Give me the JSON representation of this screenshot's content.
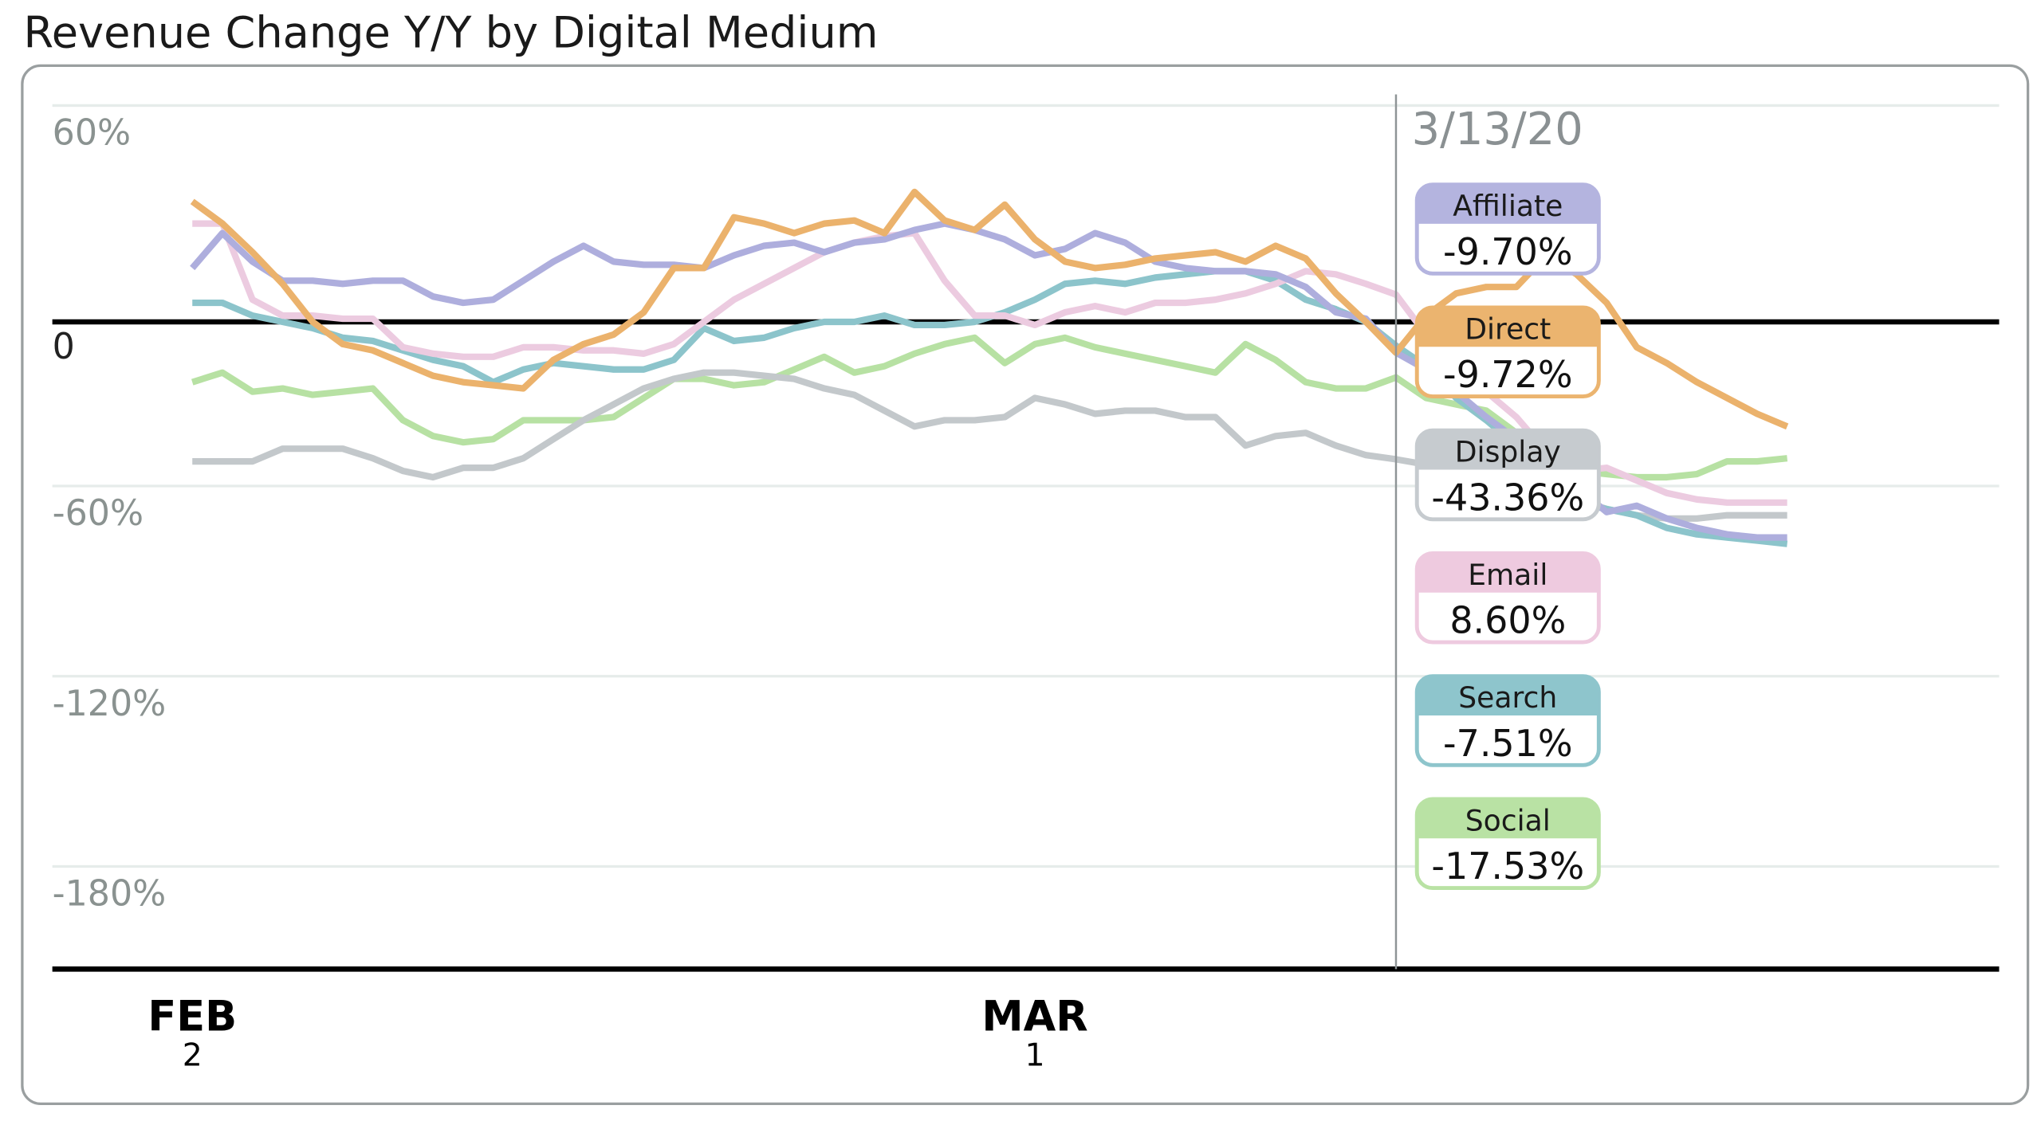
{
  "chart_data": {
    "type": "line",
    "title": "Revenue Change Y/Y by Digital Medium",
    "xlabel": "",
    "ylabel": "",
    "ylim": [
      -203,
      66
    ],
    "y_ticks": [
      {
        "value": 60,
        "label": "60%"
      },
      {
        "value": 0,
        "label": "0"
      },
      {
        "value": -60,
        "label": "-60%"
      },
      {
        "value": -120,
        "label": "-120%"
      },
      {
        "value": -180,
        "label": "-180%"
      }
    ],
    "x_ticks": [
      {
        "day_index": 0,
        "month": "FEB",
        "day": "2"
      },
      {
        "day_index": 28,
        "month": "MAR",
        "day": "1"
      }
    ],
    "x_unit": "days since Feb 2, 2020 (daily)",
    "grid": true,
    "highlight": {
      "day_index": 40,
      "label": "3/13/20"
    },
    "series": [
      {
        "name": "Affiliate",
        "color": "#aeaedd",
        "header_color": "#b4b4df",
        "callout": "-9.70%",
        "values": [
          17,
          28,
          19,
          13,
          13,
          12,
          13,
          13,
          8,
          6,
          7,
          13,
          19,
          24,
          19,
          18,
          18,
          17,
          21,
          24,
          25,
          22,
          25,
          26,
          29,
          31,
          29,
          26,
          21,
          23,
          28,
          25,
          19,
          17,
          16,
          16,
          15,
          11,
          3,
          1,
          -9.7,
          -15,
          -22,
          -30,
          -37,
          -45,
          -52,
          -60,
          -58,
          -62,
          -65,
          -67,
          -68,
          -68
        ]
      },
      {
        "name": "Direct",
        "color": "#ebb26c",
        "header_color": "#ebb46f",
        "callout": "-9.72%",
        "values": [
          38,
          31,
          22,
          12,
          0,
          -7,
          -9,
          -13,
          -17,
          -19,
          -20,
          -21,
          -12,
          -7,
          -4,
          3,
          17,
          17,
          33,
          31,
          28,
          31,
          32,
          28,
          41,
          32,
          29,
          37,
          26,
          19,
          17,
          18,
          20,
          21,
          22,
          19,
          24,
          20,
          9,
          0,
          -9.72,
          2,
          9,
          11,
          11,
          21,
          15,
          6,
          -8,
          -13,
          -19,
          -24,
          -29,
          -33
        ]
      },
      {
        "name": "Display",
        "color": "#c3c8cb",
        "header_color": "#c6cbcf",
        "callout": "-43.36%",
        "values": [
          -44,
          -44,
          -44,
          -40,
          -40,
          -40,
          -43,
          -47,
          -49,
          -46,
          -46,
          -43,
          -37,
          -31,
          -26,
          -21,
          -18,
          -16,
          -16,
          -17,
          -18,
          -21,
          -23,
          -28,
          -33,
          -31,
          -31,
          -30,
          -24,
          -26,
          -29,
          -28,
          -28,
          -30,
          -30,
          -39,
          -36,
          -35,
          -39,
          -42,
          -43.36,
          -45,
          -47,
          -48,
          -50,
          -53,
          -56,
          -59,
          -61,
          -62,
          -62,
          -61,
          -61,
          -61
        ]
      },
      {
        "name": "Email",
        "color": "#eccbe0",
        "header_color": "#eecadf",
        "callout": "8.60%",
        "values": [
          31,
          31,
          7,
          2,
          2,
          1,
          1,
          -8,
          -10,
          -11,
          -11,
          -8,
          -8,
          -9,
          -9,
          -10,
          -7,
          0,
          7,
          12,
          17,
          22,
          25,
          27,
          28,
          13,
          2,
          2,
          -1,
          3,
          5,
          3,
          6,
          6,
          7,
          9,
          12,
          16,
          15,
          12,
          8.6,
          -4,
          -18,
          -22,
          -30,
          -41,
          -47,
          -46,
          -50,
          -54,
          -56,
          -57,
          -57,
          -57
        ]
      },
      {
        "name": "Search",
        "color": "#8cc4cb",
        "header_color": "#8ec5cc",
        "callout": "-7.51%",
        "values": [
          6,
          6,
          2,
          0,
          -2,
          -5,
          -6,
          -9,
          -12,
          -14,
          -19,
          -15,
          -13,
          -14,
          -15,
          -15,
          -12,
          -2,
          -6,
          -5,
          -2,
          0,
          0,
          2,
          -1,
          -1,
          0,
          3,
          7,
          12,
          13,
          12,
          14,
          15,
          16,
          16,
          13,
          7,
          4,
          0,
          -7.51,
          -14,
          -24,
          -31,
          -39,
          -48,
          -57,
          -59,
          -61,
          -65,
          -67,
          -68,
          -69,
          -70
        ]
      },
      {
        "name": "Social",
        "color": "#b7e1a3",
        "header_color": "#b9e2a4",
        "callout": "-17.53%",
        "values": [
          -19,
          -16,
          -22,
          -21,
          -23,
          -22,
          -21,
          -31,
          -36,
          -38,
          -37,
          -31,
          -31,
          -31,
          -30,
          -24,
          -18,
          -18,
          -20,
          -19,
          -15,
          -11,
          -16,
          -14,
          -10,
          -7,
          -5,
          -13,
          -7,
          -5,
          -8,
          -10,
          -12,
          -14,
          -16,
          -7,
          -12,
          -19,
          -21,
          -21,
          -17.53,
          -24,
          -26,
          -28,
          -35,
          -46,
          -47,
          -48,
          -49,
          -49,
          -48,
          -44,
          -44,
          -43
        ]
      }
    ]
  }
}
